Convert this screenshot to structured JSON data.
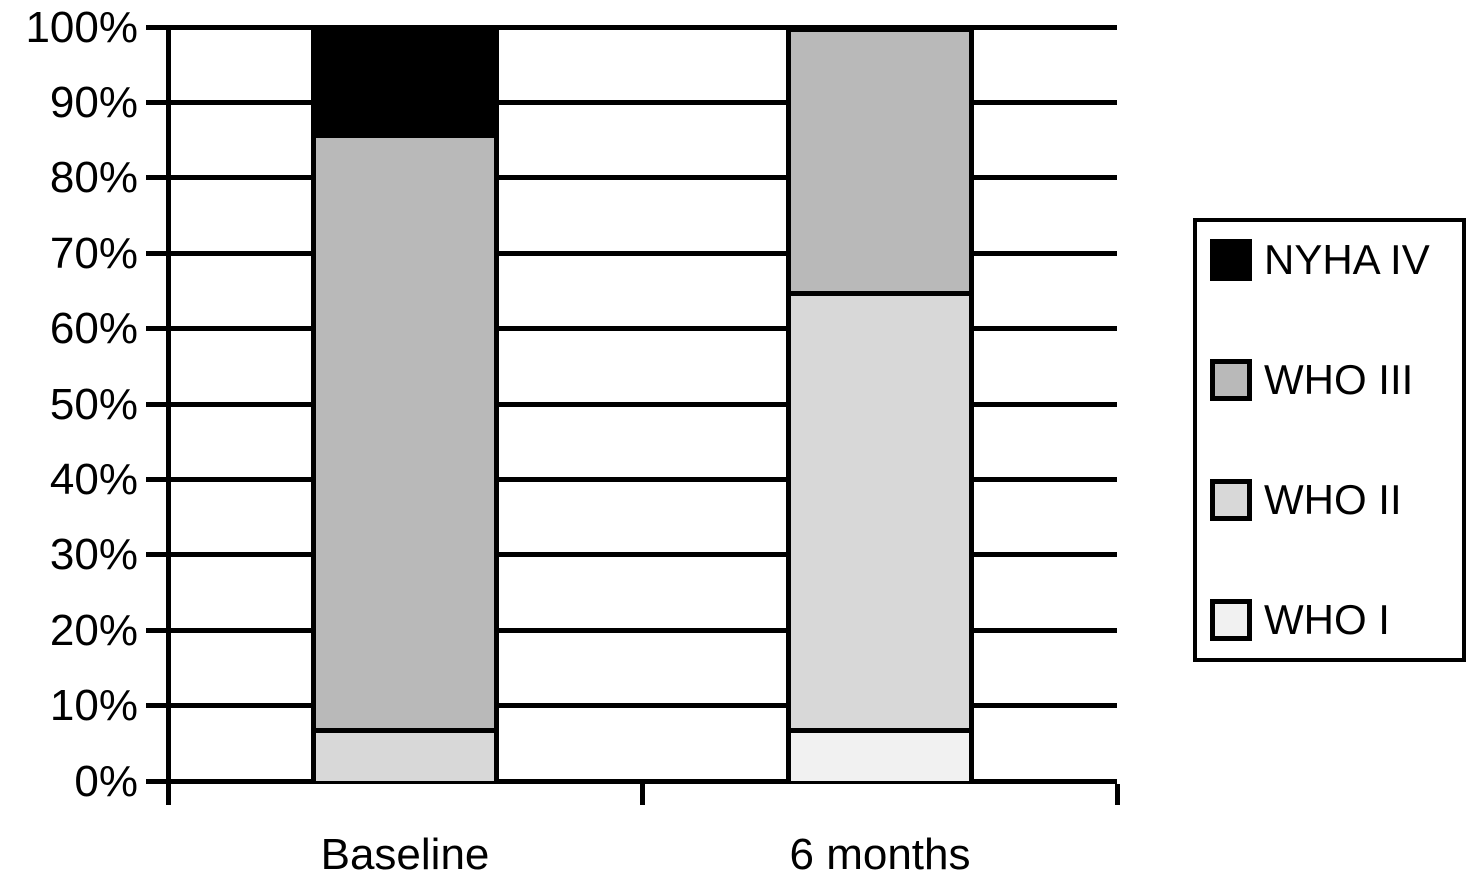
{
  "chart_data": {
    "type": "bar",
    "stacked": true,
    "percent_scale": true,
    "title": "",
    "xlabel": "",
    "ylabel": "",
    "categories": [
      "Baseline",
      "6 months"
    ],
    "series": [
      {
        "name": "WHO I",
        "color": "#f1f1f1",
        "values": [
          0,
          7
        ]
      },
      {
        "name": "WHO II",
        "color": "#d8d8d8",
        "values": [
          7,
          58
        ]
      },
      {
        "name": "WHO III",
        "color": "#b9b9b9",
        "values": [
          79,
          35
        ]
      },
      {
        "name": "NYHA IV",
        "color": "#000000",
        "values": [
          14,
          0
        ]
      }
    ],
    "ylim": [
      0,
      100
    ],
    "ytick_step": 10,
    "ytick_labels": [
      "0%",
      "10%",
      "20%",
      "30%",
      "40%",
      "50%",
      "60%",
      "70%",
      "80%",
      "90%",
      "100%"
    ],
    "grid": true,
    "legend_position": "right"
  },
  "legend": {
    "items": [
      {
        "label": "NYHA IV",
        "color": "#000000"
      },
      {
        "label": "WHO III",
        "color": "#b9b9b9"
      },
      {
        "label": "WHO II",
        "color": "#d8d8d8"
      },
      {
        "label": "WHO I",
        "color": "#f1f1f1"
      }
    ]
  }
}
